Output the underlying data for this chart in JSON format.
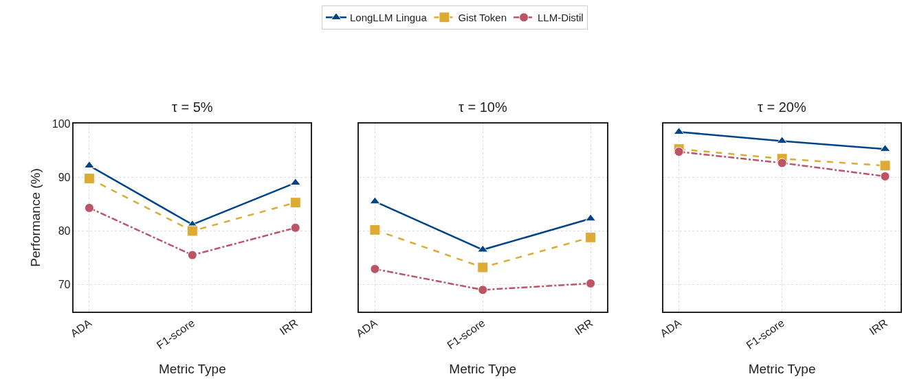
{
  "chart_data": [
    {
      "type": "line",
      "title": "τ = 5%",
      "xlabel": "Metric Type",
      "ylabel": "Performance (%)",
      "categories": [
        "ADA",
        "F1-score",
        "IRR"
      ],
      "ylim": [
        65,
        100
      ],
      "yticks": [
        70,
        80,
        90,
        100
      ],
      "grid": true,
      "legend": "top",
      "series": [
        {
          "name": "LongLLM Lingua",
          "color": "#004488",
          "marker": "triangle",
          "line_style": "solid",
          "values": [
            92.2,
            81.2,
            89.0
          ]
        },
        {
          "name": "Gist Token",
          "color": "#ddaa33",
          "marker": "square",
          "line_style": "dashed",
          "values": [
            89.8,
            80.0,
            85.3
          ]
        },
        {
          "name": "LLM-Distil",
          "color": "#bb5566",
          "marker": "circle",
          "line_style": "dashdot",
          "values": [
            84.3,
            75.5,
            80.6
          ]
        }
      ]
    },
    {
      "type": "line",
      "title": "τ = 10%",
      "xlabel": "Metric Type",
      "categories": [
        "ADA",
        "F1-score",
        "IRR"
      ],
      "ylim": [
        65,
        100
      ],
      "yticks": [
        70,
        80,
        90,
        100
      ],
      "grid": true,
      "tick_labels": "x",
      "series": [
        {
          "color": "#004488",
          "marker": "triangle",
          "line_style": "solid",
          "values": [
            85.5,
            76.5,
            82.3
          ]
        },
        {
          "color": "#ddaa33",
          "marker": "square",
          "line_style": "dashed",
          "values": [
            80.2,
            73.2,
            78.8
          ]
        },
        {
          "color": "#bb5566",
          "marker": "circle",
          "line_style": "dashdot",
          "values": [
            72.9,
            69.0,
            70.2
          ]
        }
      ]
    },
    {
      "type": "line",
      "title": "τ = 20%",
      "xlabel": "Metric Type",
      "categories": [
        "ADA",
        "F1-score",
        "IRR"
      ],
      "ylim": [
        65,
        100
      ],
      "yticks": [
        70,
        80,
        90,
        100
      ],
      "grid": true,
      "tick_labels": "x",
      "series": [
        {
          "color": "#004488",
          "marker": "triangle",
          "line_style": "solid",
          "values": [
            98.5,
            96.8,
            95.3
          ]
        },
        {
          "color": "#ddaa33",
          "marker": "square",
          "line_style": "dashed",
          "values": [
            95.3,
            93.5,
            92.2
          ]
        },
        {
          "color": "#bb5566",
          "marker": "circle",
          "line_style": "dashdot",
          "values": [
            94.8,
            92.7,
            90.2
          ]
        }
      ]
    }
  ]
}
